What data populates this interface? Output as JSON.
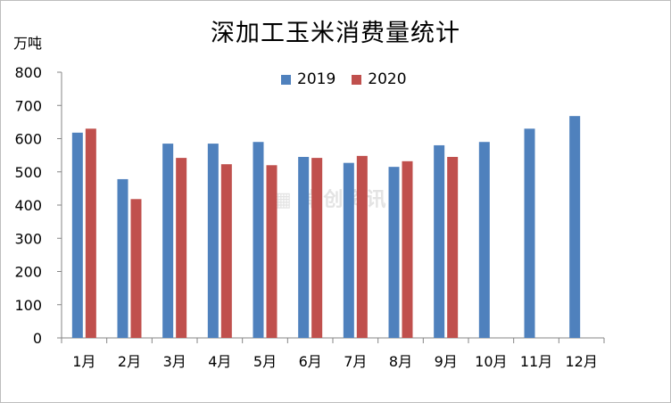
{
  "chart_data": {
    "type": "bar",
    "title": "深加工玉米消费量统计",
    "ylabel": "万吨",
    "xlabel": "",
    "categories": [
      "1月",
      "2月",
      "3月",
      "4月",
      "5月",
      "6月",
      "7月",
      "8月",
      "9月",
      "10月",
      "11月",
      "12月"
    ],
    "series": [
      {
        "name": "2019",
        "color": "#4f81bd",
        "values": [
          618,
          478,
          585,
          585,
          590,
          545,
          527,
          515,
          580,
          590,
          630,
          668
        ]
      },
      {
        "name": "2020",
        "color": "#c0504d",
        "values": [
          630,
          418,
          542,
          523,
          520,
          542,
          548,
          532,
          545,
          null,
          null,
          null
        ]
      }
    ],
    "ylim": [
      0,
      800
    ],
    "yticks": [
      0,
      100,
      200,
      300,
      400,
      500,
      600,
      700,
      800
    ],
    "grid": false,
    "legend_position": "top-center"
  },
  "watermark_text": "卓创资讯"
}
